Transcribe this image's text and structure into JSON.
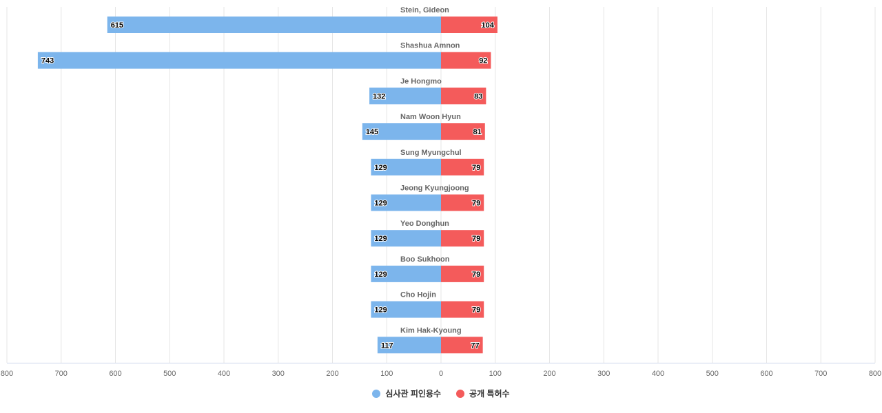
{
  "chart_data": {
    "type": "bar",
    "orientation": "horizontal-diverging",
    "categories": [
      "Stein, Gideon",
      "Shashua Amnon",
      "Je Hongmo",
      "Nam Woon Hyun",
      "Sung Myungchul",
      "Jeong Kyungjoong",
      "Yeo Donghun",
      "Boo Sukhoon",
      "Cho Hojin",
      "Kim Hak-Kyoung"
    ],
    "series": [
      {
        "name": "심사관 피인용수",
        "direction": "left",
        "color": "#7cb5ec",
        "values": [
          615,
          743,
          132,
          145,
          129,
          129,
          129,
          129,
          129,
          117
        ]
      },
      {
        "name": "공개 특허수",
        "direction": "right",
        "color": "#f45b5b",
        "values": [
          104,
          92,
          83,
          81,
          79,
          79,
          79,
          79,
          79,
          77
        ]
      }
    ],
    "x_ticks": [
      "800",
      "700",
      "600",
      "500",
      "400",
      "300",
      "200",
      "100",
      "0",
      "100",
      "200",
      "300",
      "400",
      "500",
      "600",
      "700",
      "800"
    ],
    "xlim": [
      -800,
      800
    ],
    "grid": true,
    "legend_position": "bottom-center",
    "title": "",
    "xlabel": "",
    "ylabel": ""
  }
}
